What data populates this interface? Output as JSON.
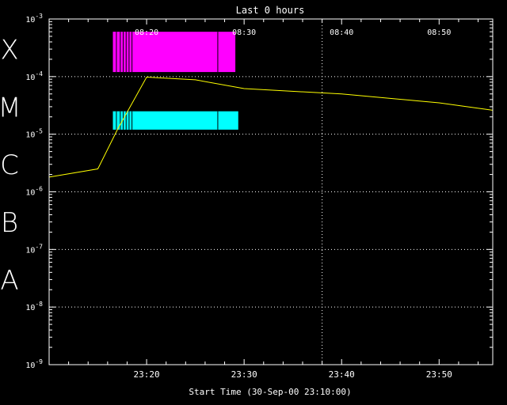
{
  "chart_data": {
    "type": "line",
    "title": "Last 0 hours",
    "xlabel": "Start Time (30-Sep-00 23:10:00)",
    "ylabel": "",
    "y_scale": "log",
    "ylim": [
      1e-09,
      0.001
    ],
    "x_unit": "minutes after 23:10",
    "xlim": [
      0,
      45.5
    ],
    "bottom_ticks": [
      {
        "x": 10,
        "label": "23:20"
      },
      {
        "x": 20,
        "label": "23:30"
      },
      {
        "x": 30,
        "label": "23:40"
      },
      {
        "x": 40,
        "label": "23:50"
      }
    ],
    "top_ticks": [
      {
        "x": 10,
        "label": "08:20"
      },
      {
        "x": 20,
        "label": "08:30"
      },
      {
        "x": 30,
        "label": "08:40"
      },
      {
        "x": 40,
        "label": "08:50"
      }
    ],
    "y_ticks": [
      {
        "y": 0.001,
        "base": "10",
        "exp": "-3"
      },
      {
        "y": 0.0001,
        "base": "10",
        "exp": "-4"
      },
      {
        "y": 1e-05,
        "base": "10",
        "exp": "-5"
      },
      {
        "y": 1e-06,
        "base": "10",
        "exp": "-6"
      },
      {
        "y": 1e-07,
        "base": "10",
        "exp": "-7"
      },
      {
        "y": 1e-08,
        "base": "10",
        "exp": "-8"
      },
      {
        "y": 1e-09,
        "base": "10",
        "exp": "-9"
      }
    ],
    "class_labels": [
      {
        "label": "X",
        "y": 0.0001
      },
      {
        "label": "M",
        "y": 1e-05
      },
      {
        "label": "C",
        "y": 1e-06
      },
      {
        "label": "B",
        "y": 1e-07
      },
      {
        "label": "A",
        "y": 1e-08
      }
    ],
    "grid_y": [
      0.0001,
      1e-05,
      1e-06,
      1e-07,
      1e-08
    ],
    "grid_x": [
      28
    ],
    "series": [
      {
        "color": "#ffff00",
        "x": [
          0,
          5,
          7,
          10,
          15,
          20,
          30,
          40,
          45.5
        ],
        "values": [
          1.8e-06,
          2.5e-06,
          1.2e-05,
          9.8e-05,
          8.8e-05,
          6.2e-05,
          5e-05,
          3.5e-05,
          2.6e-05
        ]
      }
    ],
    "bands": [
      {
        "color": "#ff00ff",
        "y_range": [
          0.00012,
          0.0006
        ],
        "x_range": [
          6.5,
          19.1
        ],
        "stripes": [
          6.5,
          6.9,
          7.3,
          7.6,
          7.9,
          8.2,
          8.5,
          17.3
        ]
      },
      {
        "color": "#00ffff",
        "y_range": [
          1.2e-05,
          2.5e-05
        ],
        "x_range": [
          6.5,
          19.4
        ],
        "stripes": [
          6.5,
          6.9,
          7.3,
          7.6,
          7.9,
          8.2,
          8.5,
          17.3
        ]
      }
    ]
  }
}
